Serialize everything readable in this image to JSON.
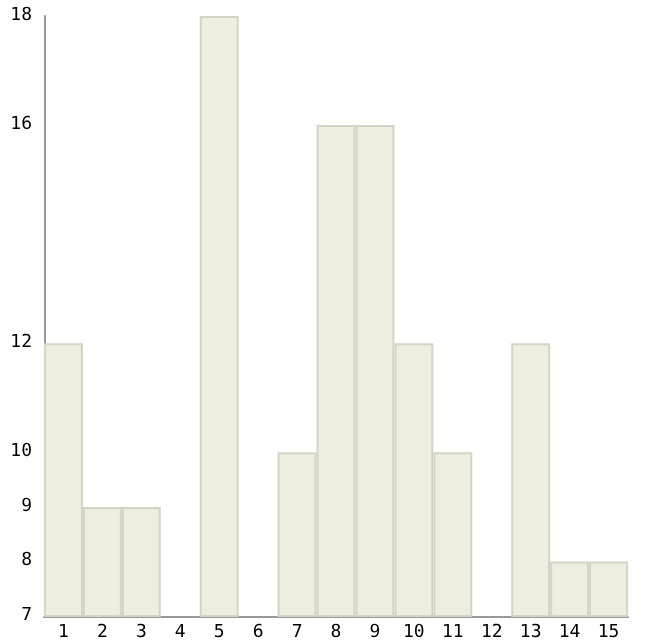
{
  "chart_data": {
    "type": "bar",
    "categories": [
      "1",
      "2",
      "3",
      "4",
      "5",
      "6",
      "7",
      "8",
      "9",
      "10",
      "11",
      "12",
      "13",
      "14",
      "15"
    ],
    "values": [
      12,
      9,
      9,
      7,
      18,
      7,
      10,
      16,
      16,
      12,
      10,
      7,
      12,
      8,
      8
    ],
    "color": "#eeeee0",
    "ylim": [
      7,
      18
    ],
    "yticks": [
      7,
      8,
      9,
      10,
      12,
      16,
      18
    ],
    "grid": false
  }
}
